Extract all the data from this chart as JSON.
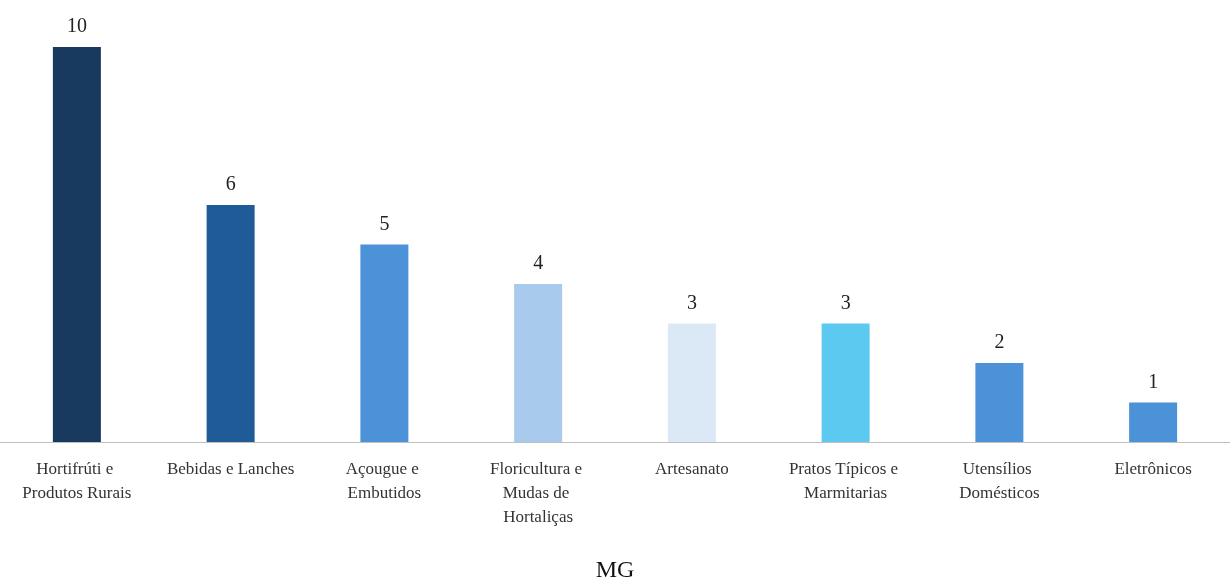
{
  "chart_data": {
    "type": "bar",
    "xlabel": "MG",
    "categories": [
      "Hortifrúti e Produtos Rurais",
      "Bebidas e Lanches",
      "Açougue e Embutidos",
      "Floricultura e Mudas de Hortaliças",
      "Artesanato",
      "Pratos Típicos e Marmitarias",
      "Utensílios Domésticos",
      "Eletrônicos"
    ],
    "values": [
      10,
      6,
      5,
      4,
      3,
      3,
      2,
      1
    ],
    "colors": [
      "#193a5f",
      "#1f5b97",
      "#4b92d9",
      "#a8caec",
      "#dbe8f5",
      "#5ccaf0",
      "#4b92d9",
      "#4b92d9"
    ],
    "data_labels": true
  }
}
